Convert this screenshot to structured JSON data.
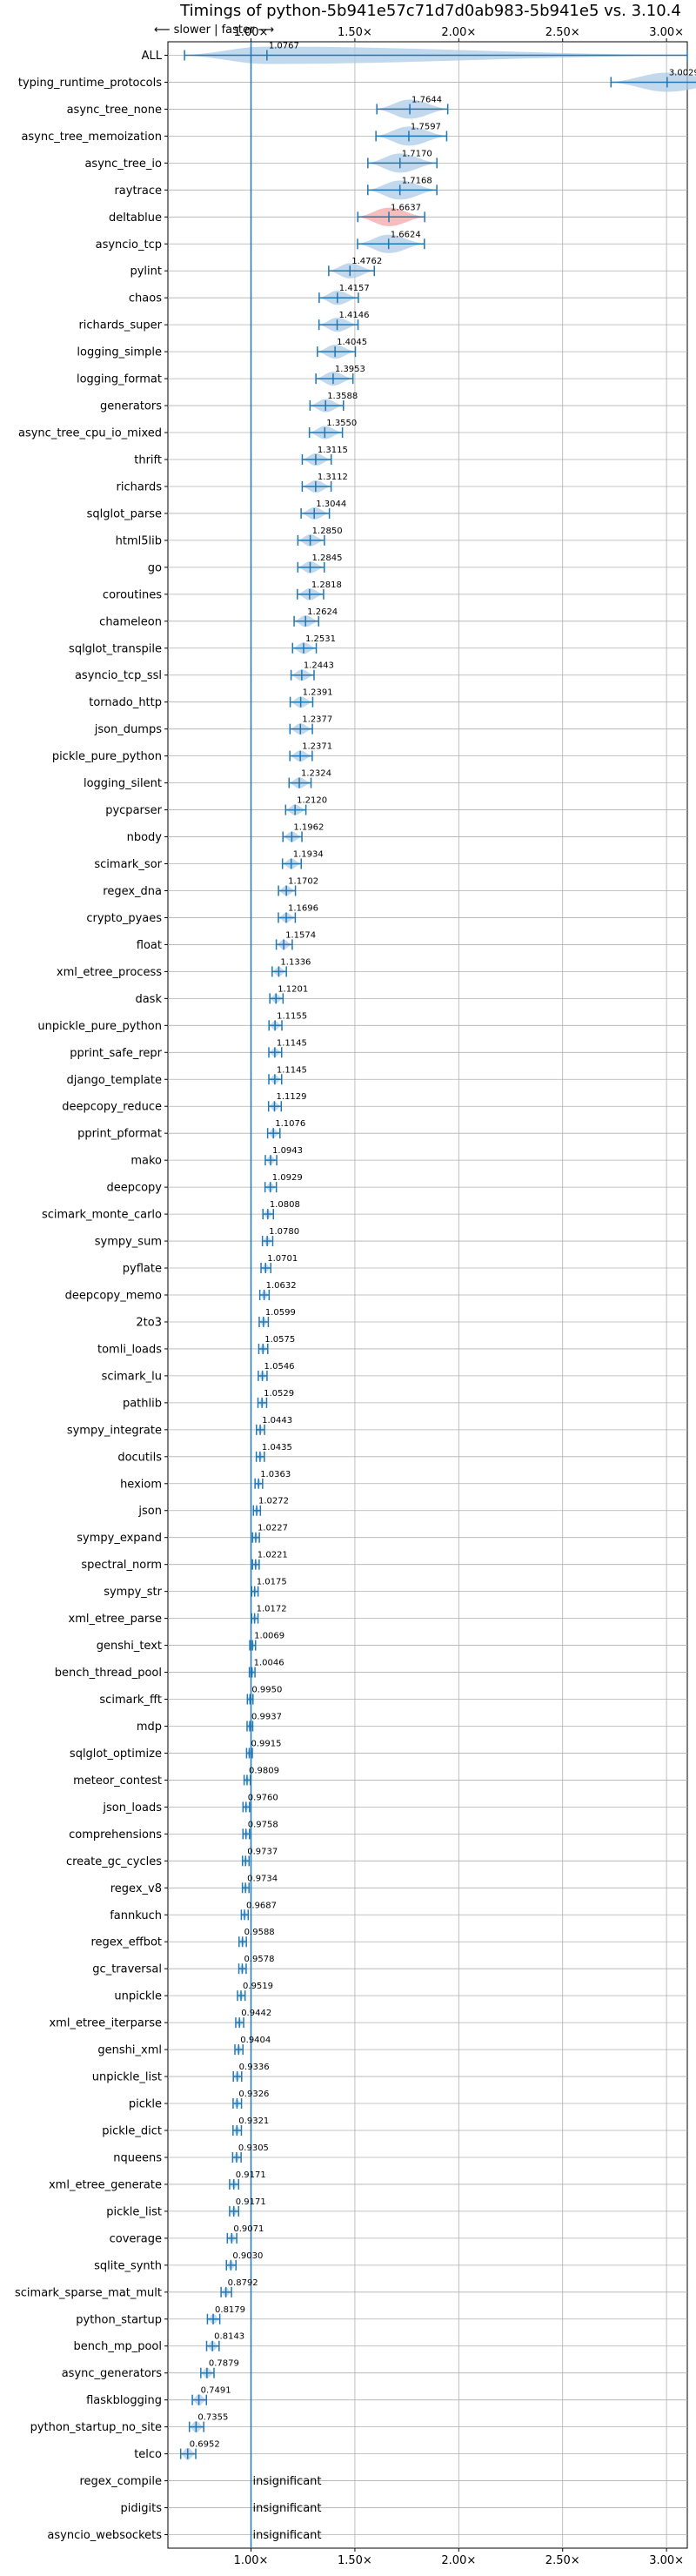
{
  "chart_data": {
    "type": "violin",
    "title": "Timings of python-5b941e57c71d7d0ab983-5b941e5 vs. 3.10.4",
    "direction_label": "⟵ slower | faster ⟶",
    "xlim": [
      0.6,
      3.1
    ],
    "xticks": [
      1.0,
      1.5,
      2.0,
      2.5,
      3.0
    ],
    "xtick_labels": [
      "1.00×",
      "1.50×",
      "2.00×",
      "2.50×",
      "3.00×"
    ],
    "reference_line": 1.0,
    "grid": true,
    "colors": {
      "violin": "#aecbe6",
      "highlight": "#f4a6a6",
      "line": "#1f77b4"
    },
    "benchmarks": [
      {
        "name": "ALL",
        "value": 1.0767,
        "min": 0.68,
        "max": 3.1,
        "spread": "wide"
      },
      {
        "name": "typing_runtime_protocols",
        "value": 3.0029
      },
      {
        "name": "async_tree_none",
        "value": 1.7644
      },
      {
        "name": "async_tree_memoization",
        "value": 1.7597
      },
      {
        "name": "async_tree_io",
        "value": 1.717
      },
      {
        "name": "raytrace",
        "value": 1.7168
      },
      {
        "name": "deltablue",
        "value": 1.6637,
        "highlight": true
      },
      {
        "name": "asyncio_tcp",
        "value": 1.6624
      },
      {
        "name": "pylint",
        "value": 1.4762
      },
      {
        "name": "chaos",
        "value": 1.4157
      },
      {
        "name": "richards_super",
        "value": 1.4146
      },
      {
        "name": "logging_simple",
        "value": 1.4045
      },
      {
        "name": "logging_format",
        "value": 1.3953
      },
      {
        "name": "generators",
        "value": 1.3588
      },
      {
        "name": "async_tree_cpu_io_mixed",
        "value": 1.355
      },
      {
        "name": "thrift",
        "value": 1.3115
      },
      {
        "name": "richards",
        "value": 1.3112
      },
      {
        "name": "sqlglot_parse",
        "value": 1.3044
      },
      {
        "name": "html5lib",
        "value": 1.285
      },
      {
        "name": "go",
        "value": 1.2845
      },
      {
        "name": "coroutines",
        "value": 1.2818
      },
      {
        "name": "chameleon",
        "value": 1.2624
      },
      {
        "name": "sqlglot_transpile",
        "value": 1.2531
      },
      {
        "name": "asyncio_tcp_ssl",
        "value": 1.2443
      },
      {
        "name": "tornado_http",
        "value": 1.2391
      },
      {
        "name": "json_dumps",
        "value": 1.2377
      },
      {
        "name": "pickle_pure_python",
        "value": 1.2371
      },
      {
        "name": "logging_silent",
        "value": 1.2324
      },
      {
        "name": "pycparser",
        "value": 1.212
      },
      {
        "name": "nbody",
        "value": 1.1962
      },
      {
        "name": "scimark_sor",
        "value": 1.1934
      },
      {
        "name": "regex_dna",
        "value": 1.1702
      },
      {
        "name": "crypto_pyaes",
        "value": 1.1696
      },
      {
        "name": "float",
        "value": 1.1574
      },
      {
        "name": "xml_etree_process",
        "value": 1.1336
      },
      {
        "name": "dask",
        "value": 1.1201
      },
      {
        "name": "unpickle_pure_python",
        "value": 1.1155
      },
      {
        "name": "pprint_safe_repr",
        "value": 1.1145
      },
      {
        "name": "django_template",
        "value": 1.1145
      },
      {
        "name": "deepcopy_reduce",
        "value": 1.1129
      },
      {
        "name": "pprint_pformat",
        "value": 1.1076
      },
      {
        "name": "mako",
        "value": 1.0943
      },
      {
        "name": "deepcopy",
        "value": 1.0929
      },
      {
        "name": "scimark_monte_carlo",
        "value": 1.0808
      },
      {
        "name": "sympy_sum",
        "value": 1.078
      },
      {
        "name": "pyflate",
        "value": 1.0701
      },
      {
        "name": "deepcopy_memo",
        "value": 1.0632
      },
      {
        "name": "2to3",
        "value": 1.0599
      },
      {
        "name": "tomli_loads",
        "value": 1.0575
      },
      {
        "name": "scimark_lu",
        "value": 1.0546
      },
      {
        "name": "pathlib",
        "value": 1.0529
      },
      {
        "name": "sympy_integrate",
        "value": 1.0443
      },
      {
        "name": "docutils",
        "value": 1.0435
      },
      {
        "name": "hexiom",
        "value": 1.0363
      },
      {
        "name": "json",
        "value": 1.0272
      },
      {
        "name": "sympy_expand",
        "value": 1.0227
      },
      {
        "name": "spectral_norm",
        "value": 1.0221
      },
      {
        "name": "sympy_str",
        "value": 1.0175
      },
      {
        "name": "xml_etree_parse",
        "value": 1.0172
      },
      {
        "name": "genshi_text",
        "value": 1.0069
      },
      {
        "name": "bench_thread_pool",
        "value": 1.0046
      },
      {
        "name": "scimark_fft",
        "value": 0.995
      },
      {
        "name": "mdp",
        "value": 0.9937
      },
      {
        "name": "sqlglot_optimize",
        "value": 0.9915
      },
      {
        "name": "meteor_contest",
        "value": 0.9809
      },
      {
        "name": "json_loads",
        "value": 0.976
      },
      {
        "name": "comprehensions",
        "value": 0.9758
      },
      {
        "name": "create_gc_cycles",
        "value": 0.9737
      },
      {
        "name": "regex_v8",
        "value": 0.9734
      },
      {
        "name": "fannkuch",
        "value": 0.9687
      },
      {
        "name": "regex_effbot",
        "value": 0.9588
      },
      {
        "name": "gc_traversal",
        "value": 0.9578
      },
      {
        "name": "unpickle",
        "value": 0.9519
      },
      {
        "name": "xml_etree_iterparse",
        "value": 0.9442
      },
      {
        "name": "genshi_xml",
        "value": 0.9404
      },
      {
        "name": "unpickle_list",
        "value": 0.9336
      },
      {
        "name": "pickle",
        "value": 0.9326
      },
      {
        "name": "pickle_dict",
        "value": 0.9321
      },
      {
        "name": "nqueens",
        "value": 0.9305
      },
      {
        "name": "xml_etree_generate",
        "value": 0.9171
      },
      {
        "name": "pickle_list",
        "value": 0.9171
      },
      {
        "name": "coverage",
        "value": 0.9071
      },
      {
        "name": "sqlite_synth",
        "value": 0.903
      },
      {
        "name": "scimark_sparse_mat_mult",
        "value": 0.8792
      },
      {
        "name": "python_startup",
        "value": 0.8179
      },
      {
        "name": "bench_mp_pool",
        "value": 0.8143
      },
      {
        "name": "async_generators",
        "value": 0.7879
      },
      {
        "name": "flaskblogging",
        "value": 0.7491
      },
      {
        "name": "python_startup_no_site",
        "value": 0.7355
      },
      {
        "name": "telco",
        "value": 0.6952
      },
      {
        "name": "regex_compile",
        "value": null,
        "note": "insignificant"
      },
      {
        "name": "pidigits",
        "value": null,
        "note": "insignificant"
      },
      {
        "name": "asyncio_websockets",
        "value": null,
        "note": "insignificant"
      }
    ]
  }
}
